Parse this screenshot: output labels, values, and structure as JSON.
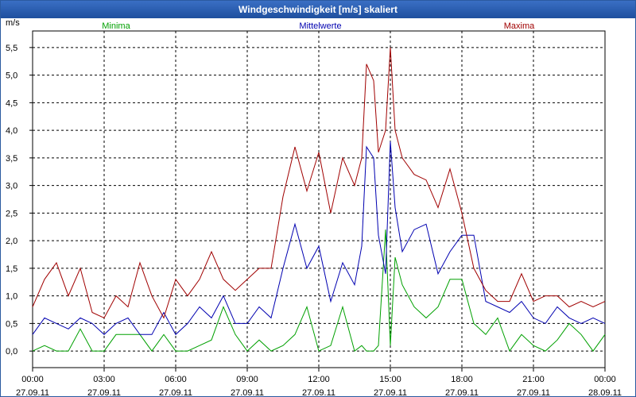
{
  "window": {
    "title": "Windgeschwindigkeit [m/s] skaliert"
  },
  "colors": {
    "minima": "#00a000",
    "mittelwerte": "#0000b0",
    "maxima": "#a00000",
    "grid": "#000000"
  },
  "chart_data": {
    "type": "line",
    "title": "Windgeschwindigkeit [m/s] skaliert",
    "ylabel": "m/s",
    "xlabel": "",
    "ylim": [
      -0.3,
      5.8
    ],
    "xlim": [
      0,
      24
    ],
    "grid": true,
    "legend_placement": "top",
    "y_ticks": [
      "0,0",
      "0,5",
      "1,0",
      "1,5",
      "2,0",
      "2,5",
      "3,0",
      "3,5",
      "4,0",
      "4,5",
      "5,0",
      "5,5"
    ],
    "y_tick_values": [
      0,
      0.5,
      1,
      1.5,
      2,
      2.5,
      3,
      3.5,
      4,
      4.5,
      5,
      5.5
    ],
    "x_ticks": [
      {
        "time": "00:00",
        "date": "27.09.11"
      },
      {
        "time": "03:00",
        "date": "27.09.11"
      },
      {
        "time": "06:00",
        "date": "27.09.11"
      },
      {
        "time": "09:00",
        "date": "27.09.11"
      },
      {
        "time": "12:00",
        "date": "27.09.11"
      },
      {
        "time": "15:00",
        "date": "27.09.11"
      },
      {
        "time": "18:00",
        "date": "27.09.11"
      },
      {
        "time": "21:00",
        "date": "27.09.11"
      },
      {
        "time": "00:00",
        "date": "28.09.11"
      }
    ],
    "x_tick_hours": [
      0,
      3,
      6,
      9,
      12,
      15,
      18,
      21,
      24
    ],
    "series": [
      {
        "name": "Minima",
        "x_hours": [
          0,
          0.5,
          1,
          1.5,
          2,
          2.5,
          3,
          3.5,
          4,
          4.5,
          5,
          5.5,
          6,
          6.5,
          7,
          7.5,
          8,
          8.5,
          9,
          9.5,
          10,
          10.5,
          11,
          11.5,
          12,
          12.5,
          13,
          13.5,
          13.8,
          14,
          14.3,
          14.5,
          14.8,
          15,
          15.2,
          15.5,
          16,
          16.5,
          17,
          17.5,
          18,
          18.5,
          19,
          19.5,
          20,
          20.5,
          21,
          21.5,
          22,
          22.5,
          23,
          23.5,
          24
        ],
        "values": [
          0,
          0.1,
          0,
          0,
          0.4,
          0,
          0,
          0.3,
          0.3,
          0.3,
          0,
          0.3,
          0,
          0,
          0.1,
          0.2,
          0.8,
          0.3,
          0,
          0.2,
          0,
          0.1,
          0.3,
          0.8,
          0,
          0.1,
          0.8,
          0,
          0.1,
          0,
          0,
          0.1,
          2.2,
          0.1,
          1.7,
          1.2,
          0.8,
          0.6,
          0.8,
          1.3,
          1.3,
          0.5,
          0.3,
          0.6,
          0,
          0.3,
          0.1,
          0,
          0.2,
          0.5,
          0.3,
          0,
          0.3
        ]
      },
      {
        "name": "Mittelwerte",
        "x_hours": [
          0,
          0.5,
          1,
          1.5,
          2,
          2.5,
          3,
          3.5,
          4,
          4.5,
          5,
          5.5,
          6,
          6.5,
          7,
          7.5,
          8,
          8.5,
          9,
          9.5,
          10,
          10.5,
          11,
          11.5,
          12,
          12.5,
          13,
          13.5,
          13.8,
          14,
          14.3,
          14.5,
          14.8,
          15,
          15.2,
          15.5,
          16,
          16.5,
          17,
          17.5,
          18,
          18.5,
          19,
          19.5,
          20,
          20.5,
          21,
          21.5,
          22,
          22.5,
          23,
          23.5,
          24
        ],
        "values": [
          0.3,
          0.6,
          0.5,
          0.4,
          0.6,
          0.5,
          0.3,
          0.5,
          0.6,
          0.3,
          0.3,
          0.7,
          0.3,
          0.5,
          0.8,
          0.6,
          1.0,
          0.5,
          0.5,
          0.8,
          0.6,
          1.5,
          2.3,
          1.5,
          1.9,
          0.9,
          1.6,
          1.2,
          1.9,
          3.7,
          3.5,
          2.1,
          1.4,
          3.8,
          2.6,
          1.8,
          2.2,
          2.3,
          1.4,
          1.8,
          2.1,
          2.1,
          0.9,
          0.8,
          0.7,
          0.9,
          0.6,
          0.5,
          0.8,
          0.6,
          0.5,
          0.6,
          0.5
        ]
      },
      {
        "name": "Maxima",
        "x_hours": [
          0,
          0.5,
          1,
          1.5,
          2,
          2.5,
          3,
          3.5,
          4,
          4.5,
          5,
          5.5,
          6,
          6.5,
          7,
          7.5,
          8,
          8.5,
          9,
          9.5,
          10,
          10.5,
          11,
          11.5,
          12,
          12.5,
          13,
          13.5,
          13.8,
          14,
          14.3,
          14.5,
          14.8,
          15,
          15.2,
          15.5,
          16,
          16.5,
          17,
          17.5,
          18,
          18.5,
          19,
          19.5,
          20,
          20.5,
          21,
          21.5,
          22,
          22.5,
          23,
          23.5,
          24
        ],
        "values": [
          0.8,
          1.3,
          1.6,
          1.0,
          1.5,
          0.7,
          0.6,
          1.0,
          0.8,
          1.6,
          1.0,
          0.6,
          1.3,
          1.0,
          1.3,
          1.8,
          1.3,
          1.1,
          1.3,
          1.5,
          1.5,
          2.8,
          3.7,
          2.9,
          3.6,
          2.5,
          3.5,
          3.0,
          3.5,
          5.2,
          4.9,
          3.6,
          4.0,
          5.5,
          4.0,
          3.5,
          3.2,
          3.1,
          2.6,
          3.3,
          2.5,
          1.5,
          1.1,
          0.9,
          0.9,
          1.4,
          0.9,
          1.0,
          1.0,
          0.8,
          0.9,
          0.8,
          0.9
        ]
      }
    ]
  }
}
